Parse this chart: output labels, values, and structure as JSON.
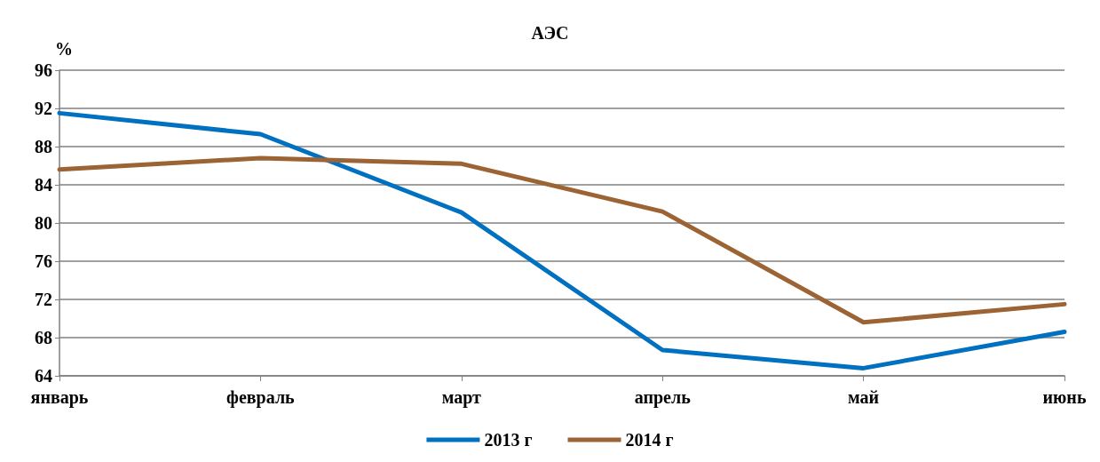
{
  "chart_data": {
    "type": "line",
    "title": "АЭС",
    "ylabel": "%",
    "categories": [
      "январь",
      "февраль",
      "март",
      "апрель",
      "май",
      "июнь"
    ],
    "series": [
      {
        "name": "2013 г",
        "color": "#0070c0",
        "values": [
          91.5,
          89.3,
          81.1,
          66.7,
          64.8,
          68.6
        ]
      },
      {
        "name": "2014 г",
        "color": "#9c6434",
        "values": [
          85.6,
          86.8,
          86.2,
          81.2,
          69.6,
          71.5
        ]
      }
    ],
    "ylim": [
      64,
      96
    ],
    "yticks": [
      64,
      68,
      72,
      76,
      80,
      84,
      88,
      92,
      96
    ],
    "grid": "y",
    "legend": "bottom",
    "marker": "none",
    "line_style": "solid"
  }
}
